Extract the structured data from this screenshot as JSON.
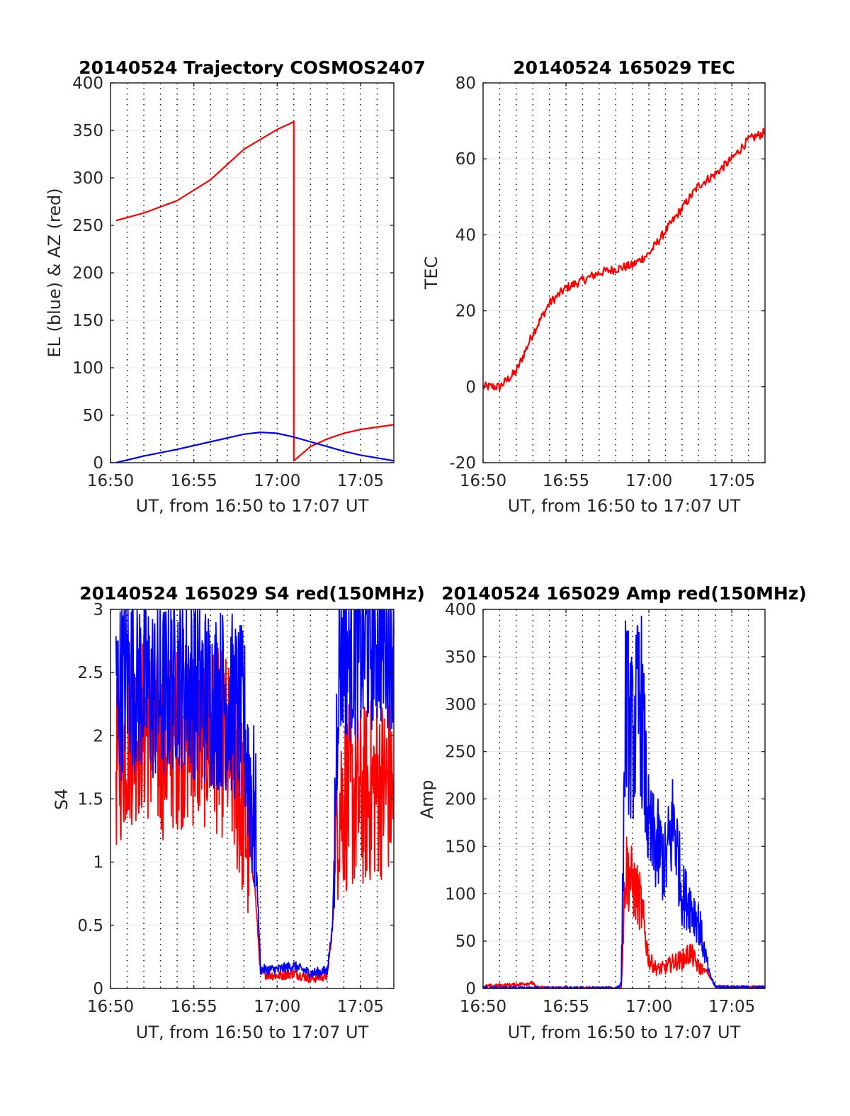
{
  "chart_data": [
    {
      "type": "line",
      "title": "20140524 Trajectory COSMOS2407",
      "xlabel": "UT, from 16:50 to 17:07 UT",
      "ylabel": "EL (blue) & AZ (red)",
      "xlim": [
        "16:50",
        "17:07"
      ],
      "ylim": [
        0,
        400
      ],
      "x_ticks": [
        "16:50",
        "16:55",
        "17:00",
        "17:05"
      ],
      "y_ticks": [
        "0",
        "50",
        "100",
        "150",
        "200",
        "250",
        "300",
        "350",
        "400"
      ],
      "grid": true,
      "series": [
        {
          "color": "#ff0000",
          "x": [
            "16:50:20",
            "16:52",
            "16:54",
            "16:56",
            "16:58",
            "17:00",
            "17:01:00",
            "17:01:00",
            "17:02",
            "17:03",
            "17:04",
            "17:05",
            "17:07"
          ],
          "values": [
            255,
            263,
            276,
            298,
            330,
            351,
            359,
            2,
            17,
            25,
            31,
            35,
            40
          ]
        },
        {
          "color": "#0000ff",
          "x": [
            "16:50:20",
            "16:52",
            "16:54",
            "16:56",
            "16:58",
            "16:59",
            "17:00",
            "17:01",
            "17:02",
            "17:03",
            "17:04",
            "17:05",
            "17:06",
            "17:07"
          ],
          "values": [
            0,
            7,
            14,
            22,
            30,
            32,
            31,
            27,
            22,
            17,
            12,
            8,
            5,
            2
          ]
        }
      ]
    },
    {
      "type": "line",
      "title": "20140524 165029 TEC",
      "xlabel": "UT, from 16:50 to 17:07 UT",
      "ylabel": "TEC",
      "xlim": [
        "16:50",
        "17:07"
      ],
      "ylim": [
        -20,
        80
      ],
      "x_ticks": [
        "16:50",
        "16:55",
        "17:00",
        "17:05"
      ],
      "y_ticks": [
        "-20",
        "0",
        "20",
        "40",
        "60",
        "80"
      ],
      "grid": true,
      "series": [
        {
          "color": "#ff0000",
          "x": [
            "16:50:00",
            "16:51:00",
            "16:52:00",
            "16:53:00",
            "16:54:00",
            "16:55:00",
            "16:56:00",
            "16:57:00",
            "16:58:00",
            "16:59:00",
            "17:00:00",
            "17:01:00",
            "17:02:00",
            "17:03:00",
            "17:04:00",
            "17:05:00",
            "17:06:00",
            "17:07:00"
          ],
          "values": [
            0,
            0,
            4,
            14,
            22,
            26,
            28,
            30,
            31,
            32,
            35,
            41,
            47,
            53,
            56,
            60,
            65,
            67
          ]
        }
      ]
    },
    {
      "type": "line",
      "title": "20140524 165029 S4 red(150MHz)",
      "xlabel": "UT, from 16:50 to 17:07 UT",
      "ylabel": "S4",
      "xlim": [
        "16:50",
        "17:07"
      ],
      "ylim": [
        0,
        3
      ],
      "x_ticks": [
        "16:50",
        "16:55",
        "17:00",
        "17:05"
      ],
      "y_ticks": [
        "0",
        "0.5",
        "1",
        "1.5",
        "2",
        "2.5",
        "3"
      ],
      "grid": true,
      "series": [
        {
          "color": "#ff0000",
          "x": [
            "16:50:20",
            "16:51",
            "16:52",
            "16:53",
            "16:54",
            "16:55",
            "16:56",
            "16:57",
            "16:58",
            "16:58:40",
            "16:59",
            "17:00",
            "17:01",
            "17:02",
            "17:03",
            "17:03:20",
            "17:03:40",
            "17:04",
            "17:05",
            "17:06",
            "17:07"
          ],
          "values": [
            1.8,
            2.0,
            2.1,
            1.9,
            2.0,
            2.0,
            2.0,
            1.9,
            1.4,
            0.8,
            0.12,
            0.1,
            0.12,
            0.08,
            0.1,
            0.5,
            1.5,
            1.5,
            1.5,
            1.6,
            1.6
          ]
        },
        {
          "color": "#0000ff",
          "x": [
            "16:50:20",
            "16:51",
            "16:52",
            "16:53",
            "16:54",
            "16:55",
            "16:56",
            "16:57",
            "16:58",
            "16:58:40",
            "16:59",
            "17:00",
            "17:01",
            "17:02",
            "17:03",
            "17:03:20",
            "17:03:40",
            "17:04",
            "17:05",
            "17:06",
            "17:07"
          ],
          "values": [
            2.3,
            2.5,
            2.4,
            2.3,
            2.5,
            2.4,
            2.3,
            2.3,
            2.1,
            1.3,
            0.15,
            0.15,
            0.18,
            0.12,
            0.14,
            0.5,
            2.6,
            2.7,
            2.7,
            2.8,
            2.8
          ]
        }
      ]
    },
    {
      "type": "line",
      "title": "20140524 165029 Amp red(150MHz)",
      "xlabel": "UT, from 16:50 to 17:07 UT",
      "ylabel": "Amp",
      "xlim": [
        "16:50",
        "17:07"
      ],
      "ylim": [
        0,
        400
      ],
      "x_ticks": [
        "16:50",
        "16:55",
        "17:00",
        "17:05"
      ],
      "y_ticks": [
        "0",
        "50",
        "100",
        "150",
        "200",
        "250",
        "300",
        "350",
        "400"
      ],
      "grid": true,
      "series": [
        {
          "color": "#ff0000",
          "x": [
            "16:50",
            "16:51",
            "16:52",
            "16:53",
            "16:53:10",
            "16:55",
            "16:57",
            "16:58:20",
            "16:58:35",
            "16:59",
            "16:59:30",
            "17:00",
            "17:00:30",
            "17:01",
            "17:01:30",
            "17:02",
            "17:02:30",
            "17:03",
            "17:03:30",
            "17:04",
            "17:05",
            "17:07"
          ],
          "values": [
            2,
            3,
            4,
            6,
            1,
            0,
            0,
            0,
            130,
            110,
            90,
            30,
            20,
            22,
            28,
            30,
            38,
            22,
            18,
            2,
            1,
            1
          ]
        },
        {
          "color": "#0000ff",
          "x": [
            "16:50",
            "16:52",
            "16:55",
            "16:58",
            "16:58:20",
            "16:58:35",
            "16:59",
            "16:59:30",
            "17:00",
            "17:00:30",
            "17:01",
            "17:01:30",
            "17:02",
            "17:02:30",
            "17:03",
            "17:03:20",
            "17:03:40",
            "17:04",
            "17:05",
            "17:07"
          ],
          "values": [
            0,
            0,
            0,
            0,
            5,
            300,
            260,
            310,
            160,
            150,
            130,
            180,
            100,
            90,
            70,
            40,
            15,
            2,
            1,
            1
          ]
        }
      ]
    }
  ]
}
